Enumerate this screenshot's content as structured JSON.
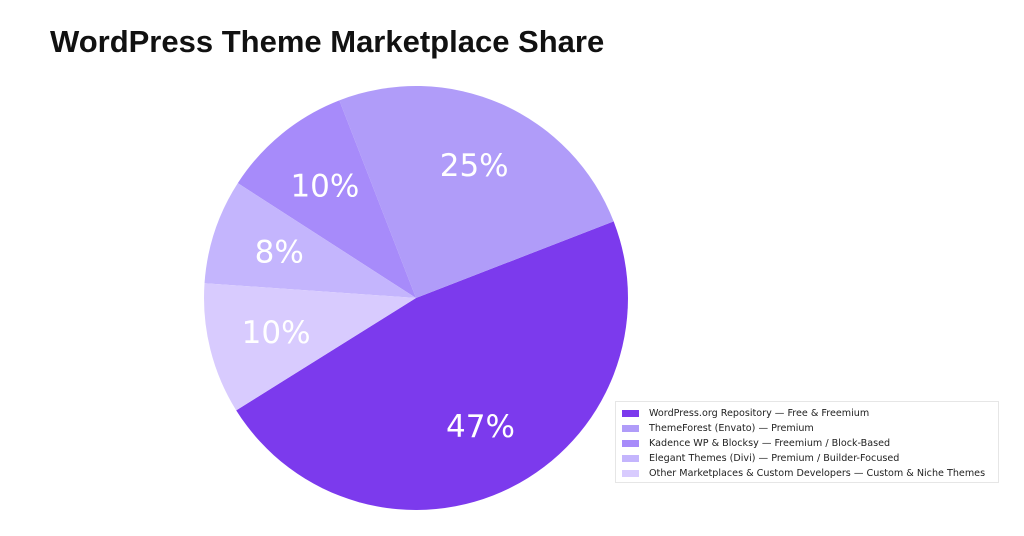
{
  "chart_data": {
    "type": "pie",
    "title": "WordPress Theme Marketplace Share",
    "slices": [
      {
        "label": "WordPress.org Repository — Free & Freemium",
        "value": 47,
        "display": "47%",
        "color": "#7c3aed"
      },
      {
        "label": "ThemeForest (Envato) — Premium",
        "value": 25,
        "display": "25%",
        "color": "#b09cf9"
      },
      {
        "label": "Kadence WP & Blocksy — Freemium / Block-Based",
        "value": 10,
        "display": "10%",
        "color": "#a78bfa"
      },
      {
        "label": "Elegant Themes (Divi) — Premium / Builder-Focused",
        "value": 8,
        "display": "8%",
        "color": "#c4b5fd"
      },
      {
        "label": "Other Marketplaces & Custom Developers — Custom & Niche Themes",
        "value": 10,
        "display": "10%",
        "color": "#d8cbfe"
      }
    ],
    "start_angle_deg": 212,
    "direction": "counterclockwise",
    "legend_position": "lower-right"
  }
}
